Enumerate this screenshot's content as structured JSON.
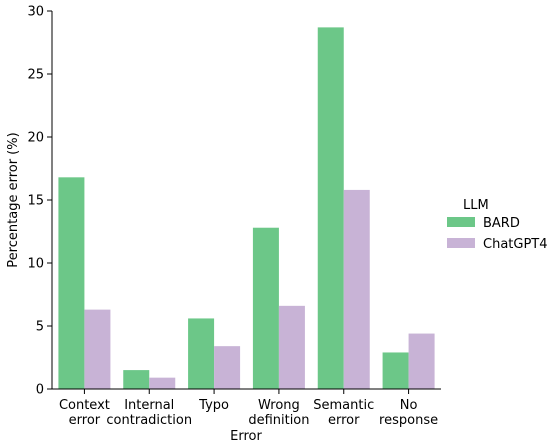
{
  "chart_data": {
    "type": "bar",
    "xlabel": "Error",
    "ylabel": "Percentage error (%)",
    "ylim": [
      0,
      30
    ],
    "yticks": [
      0,
      5,
      10,
      15,
      20,
      25,
      30
    ],
    "categories": [
      [
        "Context",
        "error"
      ],
      [
        "Internal",
        "contradiction"
      ],
      [
        "Typo"
      ],
      [
        "Wrong",
        "definition"
      ],
      [
        "Semantic",
        "error"
      ],
      [
        "No",
        "response"
      ]
    ],
    "legend": {
      "title": "LLM",
      "placement": "right"
    },
    "series": [
      {
        "name": "BARD",
        "color": "#6cc788",
        "values": [
          16.8,
          1.5,
          5.6,
          12.8,
          28.7,
          2.9
        ]
      },
      {
        "name": "ChatGPT4",
        "color": "#c8b3d6",
        "values": [
          6.3,
          0.9,
          3.4,
          6.6,
          15.8,
          4.4
        ]
      }
    ]
  }
}
